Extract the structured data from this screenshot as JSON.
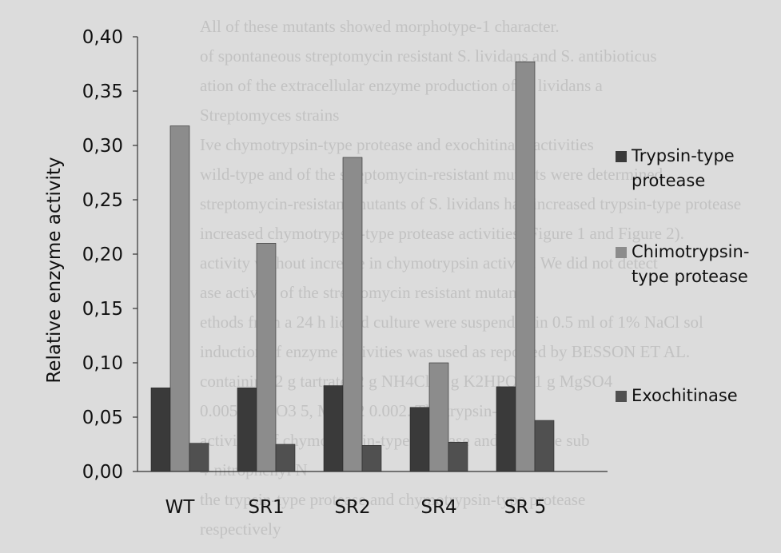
{
  "background_text": [
    "All of these mutants showed morphotype-1 character.",
    "of spontaneous streptomycin resistant S. lividans and S. antibioticus",
    "ation of the extracellular enzyme production of S. lividans a",
    "Streptomyces strains",
    "Ive chymotrypsin-type protease and exochitinase activities",
    "wild-type and of the streptomycin-resistant mutants were determined",
    "streptomycin-resistant mutants of S. lividans had increased trypsin-type protease",
    "increased chymotrypsin-type protease activities (Figure 1 and Figure 2).",
    "activity without increase in chymotrypsin activity. We did not detect",
    "ase activity of the streptomycin resistant mutants.",
    "ethods from a 24 h liquid culture were suspended in 0.5 ml of 1% NaCl sol",
    "induction of enzyme activities was used as reported by BESSON ET AL.",
    "containing 2 g tartrate, 2 g NH4Cl, 1 g K2HPO4, 1 g MgSO4",
    "0.005, CaCO3 5, MnCl2 0.002. The trypsin-type",
    "activities of chymotrypsin-type protease and chitinase sub",
    "4-nitrophenyl N",
    "the trypsin-type protease and chymotrypsin-type protease",
    "respectively"
  ],
  "chart_data": {
    "type": "bar",
    "categories": [
      "WT",
      "SR1",
      "SR2",
      "SR4",
      "SR 5"
    ],
    "series": [
      {
        "name": "Trypsin-type protease",
        "values": [
          0.077,
          0.077,
          0.079,
          0.059,
          0.078
        ],
        "color": "#3a3a3a"
      },
      {
        "name": "Chimotrypsin-type protease",
        "values": [
          0.318,
          0.21,
          0.289,
          0.1,
          0.377
        ],
        "color": "#8c8c8c"
      },
      {
        "name": "Exochitinase",
        "values": [
          0.026,
          0.025,
          0.024,
          0.027,
          0.047
        ],
        "color": "#505050"
      }
    ],
    "ylabel": "Relative enzyme activity",
    "yticks": [
      "0,00",
      "0,05",
      "0,10",
      "0,15",
      "0,20",
      "0,25",
      "0,30",
      "0,35",
      "0,40"
    ],
    "ylim": [
      0,
      0.4
    ],
    "grid": false,
    "legend": "right"
  }
}
